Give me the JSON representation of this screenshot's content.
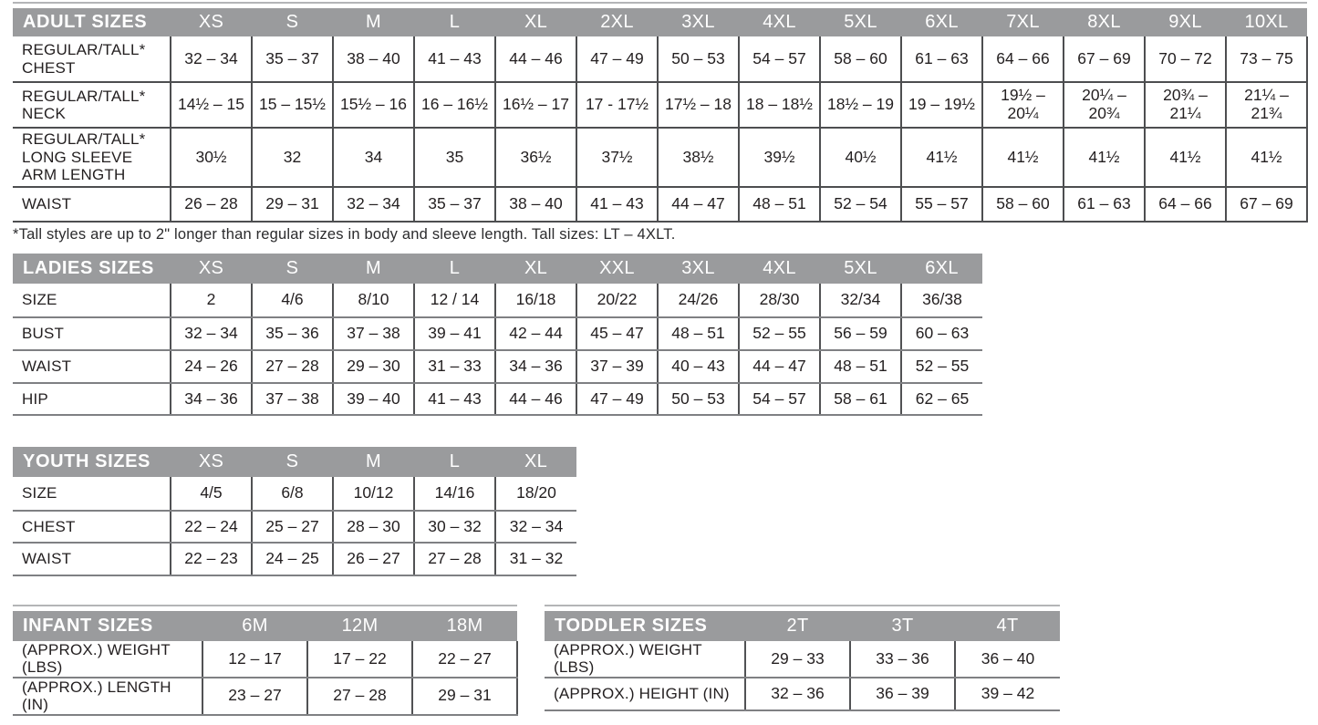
{
  "colors": {
    "header_bg": "#9a9b9d",
    "header_text": "#ffffff",
    "border_dark": "#4d4e50",
    "border_light": "#7f8083",
    "text": "#231f20",
    "rule_line": "#b4b5b7"
  },
  "footnote": "*Tall styles are up to 2\" longer than regular sizes in body and sleeve length. Tall sizes: LT – 4XLT.",
  "tables": {
    "adult": {
      "title": "ADULT SIZES",
      "columns": [
        "XS",
        "S",
        "M",
        "L",
        "XL",
        "2XL",
        "3XL",
        "4XL",
        "5XL",
        "6XL",
        "7XL",
        "8XL",
        "9XL",
        "10XL"
      ],
      "rows": [
        {
          "label": "REGULAR/TALL*\nCHEST",
          "values": [
            "32 – 34",
            "35 – 37",
            "38 – 40",
            "41 – 43",
            "44 – 46",
            "47 – 49",
            "50 – 53",
            "54 – 57",
            "58 – 60",
            "61 – 63",
            "64 – 66",
            "67 – 69",
            "70 – 72",
            "73 – 75"
          ]
        },
        {
          "label": "REGULAR/TALL*\nNECK",
          "values": [
            "14½ – 15",
            "15 – 15½",
            "15½ – 16",
            "16 – 16½",
            "16½ – 17",
            "17 - 17½",
            "17½ – 18",
            "18 – 18½",
            "18½ – 19",
            "19 – 19½",
            "19½ –\n20¼",
            "20¼ –\n20¾",
            "20¾ –\n21¼",
            "21¼ –\n21¾"
          ]
        },
        {
          "label": "REGULAR/TALL*\nLONG SLEEVE\nARM LENGTH",
          "values": [
            "30½",
            "32",
            "34",
            "35",
            "36½",
            "37½",
            "38½",
            "39½",
            "40½",
            "41½",
            "41½",
            "41½",
            "41½",
            "41½"
          ]
        },
        {
          "label": "WAIST",
          "values": [
            "26 – 28",
            "29 – 31",
            "32 – 34",
            "35 – 37",
            "38 – 40",
            "41 – 43",
            "44 – 47",
            "48 – 51",
            "52 – 54",
            "55 – 57",
            "58 – 60",
            "61 – 63",
            "64 – 66",
            "67 – 69"
          ]
        }
      ]
    },
    "ladies": {
      "title": "LADIES SIZES",
      "columns": [
        "XS",
        "S",
        "M",
        "L",
        "XL",
        "XXL",
        "3XL",
        "4XL",
        "5XL",
        "6XL"
      ],
      "rows": [
        {
          "label": "SIZE",
          "values": [
            "2",
            "4/6",
            "8/10",
            "12 / 14",
            "16/18",
            "20/22",
            "24/26",
            "28/30",
            "32/34",
            "36/38"
          ]
        },
        {
          "label": "BUST",
          "values": [
            "32 – 34",
            "35 – 36",
            "37 – 38",
            "39 – 41",
            "42 – 44",
            "45 – 47",
            "48 – 51",
            "52 – 55",
            "56 – 59",
            "60 – 63"
          ]
        },
        {
          "label": "WAIST",
          "values": [
            "24 – 26",
            "27 – 28",
            "29 – 30",
            "31 – 33",
            "34 – 36",
            "37 – 39",
            "40 – 43",
            "44 – 47",
            "48 – 51",
            "52 – 55"
          ]
        },
        {
          "label": "HIP",
          "values": [
            "34 – 36",
            "37 – 38",
            "39 – 40",
            "41 – 43",
            "44 – 46",
            "47 – 49",
            "50 – 53",
            "54 – 57",
            "58 – 61",
            "62 – 65"
          ]
        }
      ]
    },
    "youth": {
      "title": "YOUTH SIZES",
      "columns": [
        "XS",
        "S",
        "M",
        "L",
        "XL"
      ],
      "rows": [
        {
          "label": "SIZE",
          "values": [
            "4/5",
            "6/8",
            "10/12",
            "14/16",
            "18/20"
          ]
        },
        {
          "label": "CHEST",
          "values": [
            "22 – 24",
            "25 – 27",
            "28 – 30",
            "30 – 32",
            "32 – 34"
          ]
        },
        {
          "label": "WAIST",
          "values": [
            "22 – 23",
            "24 – 25",
            "26 – 27",
            "27 – 28",
            "31 – 32"
          ]
        }
      ]
    },
    "infant": {
      "title": "INFANT SIZES",
      "columns": [
        "6M",
        "12M",
        "18M"
      ],
      "rows": [
        {
          "label": "(APPROX.) WEIGHT (LBS)",
          "values": [
            "12 – 17",
            "17 – 22",
            "22 – 27"
          ]
        },
        {
          "label": "(APPROX.) LENGTH (IN)",
          "values": [
            "23 – 27",
            "27 – 28",
            "29 – 31"
          ]
        }
      ]
    },
    "toddler": {
      "title": "TODDLER SIZES",
      "columns": [
        "2T",
        "3T",
        "4T"
      ],
      "rows": [
        {
          "label": "(APPROX.) WEIGHT (LBS)",
          "values": [
            "29 – 33",
            "33 – 36",
            "36 – 40"
          ]
        },
        {
          "label": "(APPROX.) HEIGHT (IN)",
          "values": [
            "32 – 36",
            "36 – 39",
            "39 – 42"
          ]
        }
      ]
    }
  }
}
